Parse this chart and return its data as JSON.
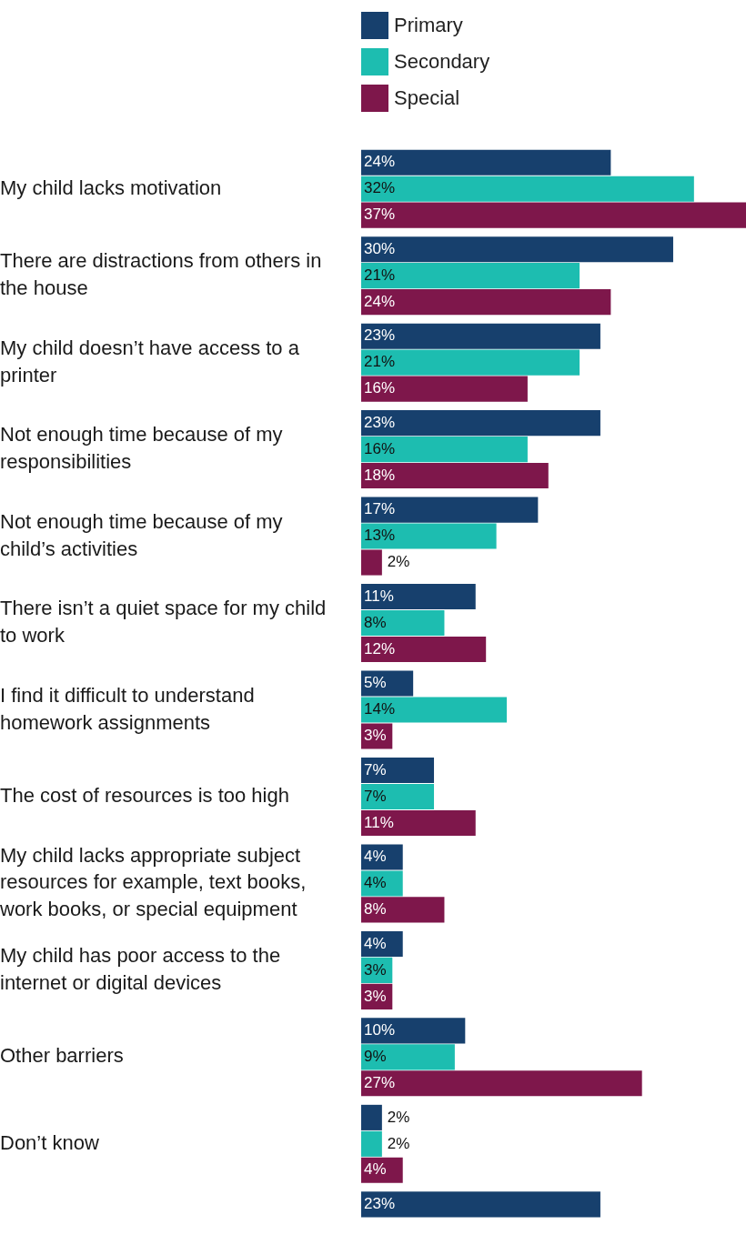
{
  "chart_data": {
    "type": "bar",
    "orientation": "horizontal",
    "legend": "top",
    "data_labels": true,
    "categories": [
      "My child lacks motivation",
      "There are distractions from others in the house",
      "My child doesn’t have access to a printer",
      "Not enough time because of my responsibilities",
      "Not enough time because of my child’s activities",
      "There isn’t a quiet space for my child to work",
      "I find it difficult to understand homework assignments",
      "The cost of resources is too high",
      "My child lacks appropriate subject resources for example, text books, work books, or special equipment",
      "My child has poor access to the internet or digital devices",
      "Other barriers",
      "Don’t know",
      null
    ],
    "series": [
      {
        "name": "Primary",
        "color": "#17406d",
        "values": [
          24,
          30,
          23,
          23,
          17,
          11,
          5,
          7,
          4,
          4,
          10,
          2,
          23
        ],
        "value_labels": [
          "24%",
          "30%",
          "23%",
          "23%",
          "17%",
          "11%",
          "5%",
          "7%",
          "4%",
          "4%",
          "10%",
          "2%",
          "23%"
        ]
      },
      {
        "name": "Secondary",
        "color": "#1dbdb0",
        "values": [
          32,
          21,
          21,
          16,
          13,
          8,
          14,
          7,
          4,
          3,
          9,
          2,
          null
        ],
        "value_labels": [
          "32%",
          "21%",
          "21%",
          "16%",
          "13%",
          "8%",
          "14%",
          "7%",
          "4%",
          "3%",
          "9%",
          "2%",
          null
        ]
      },
      {
        "name": "Special",
        "color": "#7e174b",
        "values": [
          37,
          24,
          16,
          18,
          2,
          12,
          3,
          11,
          8,
          3,
          27,
          4,
          null
        ],
        "value_labels": [
          "37%",
          "24%",
          "16%",
          "18%",
          "2%",
          "12%",
          "3%",
          "11%",
          "8%",
          "3%",
          "27%",
          "4%",
          null
        ]
      }
    ]
  }
}
